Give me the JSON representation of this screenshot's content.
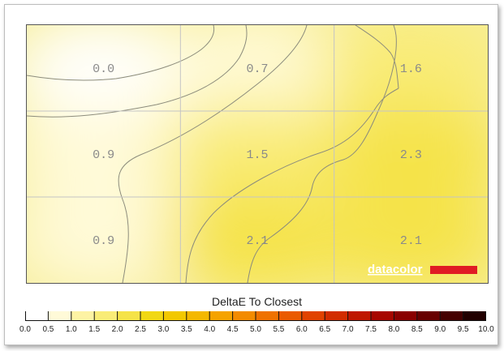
{
  "chart_data": {
    "type": "heatmap",
    "grid_rows": 3,
    "grid_cols": 3,
    "values": [
      [
        0.0,
        0.7,
        1.6
      ],
      [
        0.9,
        1.5,
        2.3
      ],
      [
        0.9,
        2.1,
        2.1
      ]
    ],
    "value_labels": [
      [
        "0.0",
        "0.7",
        "1.6"
      ],
      [
        "0.9",
        "1.5",
        "2.3"
      ],
      [
        "0.9",
        "2.1",
        "2.1"
      ]
    ],
    "colorbar": {
      "title": "DeltaE To Closest",
      "range": [
        0.0,
        10.0
      ],
      "ticks": [
        "0.0",
        "0.5",
        "1.0",
        "1.5",
        "2.0",
        "2.5",
        "3.0",
        "3.5",
        "4.0",
        "4.5",
        "5.0",
        "5.5",
        "6.0",
        "6.5",
        "7.0",
        "7.5",
        "8.0",
        "8.5",
        "9.0",
        "9.5",
        "10.0"
      ],
      "colors": [
        "#ffffff",
        "#fffad8",
        "#fdf3a4",
        "#f9ec77",
        "#f5e348",
        "#f1d814",
        "#f2c800",
        "#f4b800",
        "#f5a300",
        "#f38b00",
        "#ef7200",
        "#ea5a00",
        "#e14300",
        "#d22d00",
        "#bf1800",
        "#a70700",
        "#8a0000",
        "#680000",
        "#450000",
        "#220000"
      ]
    },
    "grid": true,
    "contours": true
  },
  "logo": {
    "text": "datacolor",
    "bar_color": "#e01b24"
  }
}
